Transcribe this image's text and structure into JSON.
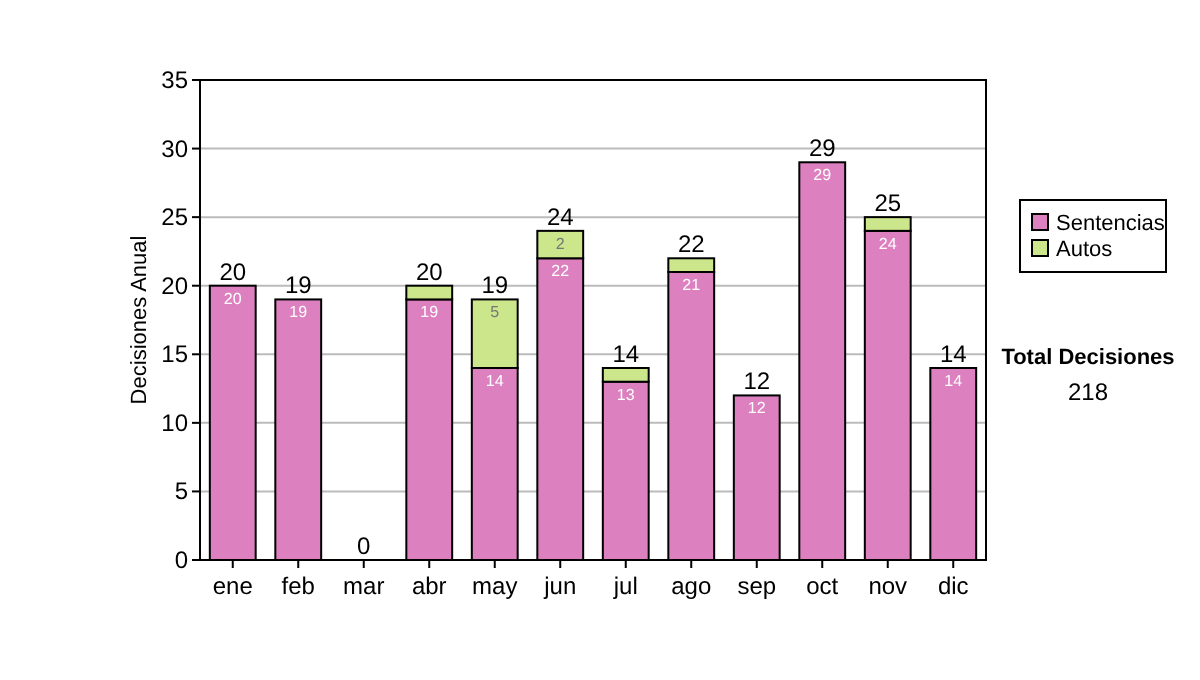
{
  "chart_data": {
    "type": "bar",
    "stacked": true,
    "ylabel": "Decisiones Anual",
    "categories": [
      "ene",
      "feb",
      "mar",
      "abr",
      "may",
      "jun",
      "jul",
      "ago",
      "sep",
      "oct",
      "nov",
      "dic"
    ],
    "series": [
      {
        "name": "Sentencias",
        "color": "#dd80c0",
        "values": [
          20,
          19,
          0,
          19,
          14,
          22,
          13,
          21,
          12,
          29,
          24,
          14
        ],
        "value_labels": [
          "20",
          "19",
          null,
          "19",
          "14",
          "22",
          "13",
          "21",
          "12",
          "29",
          "24",
          "14"
        ]
      },
      {
        "name": "Autos",
        "color": "#cce68c",
        "values": [
          0,
          0,
          0,
          1,
          5,
          2,
          1,
          1,
          0,
          0,
          1,
          0
        ],
        "value_labels": [
          null,
          null,
          null,
          null,
          "5",
          "2",
          null,
          null,
          null,
          null,
          null,
          null
        ]
      }
    ],
    "totals": [
      "20",
      "19",
      "0",
      "20",
      "19",
      "24",
      "14",
      "22",
      "12",
      "29",
      "25",
      "14"
    ],
    "ylim": [
      0,
      35
    ],
    "yticks": [
      0,
      5,
      10,
      15,
      20,
      25,
      30,
      35
    ],
    "grid": "y",
    "legend": "right",
    "annotations": [
      "Total Decisiones",
      "218"
    ]
  }
}
